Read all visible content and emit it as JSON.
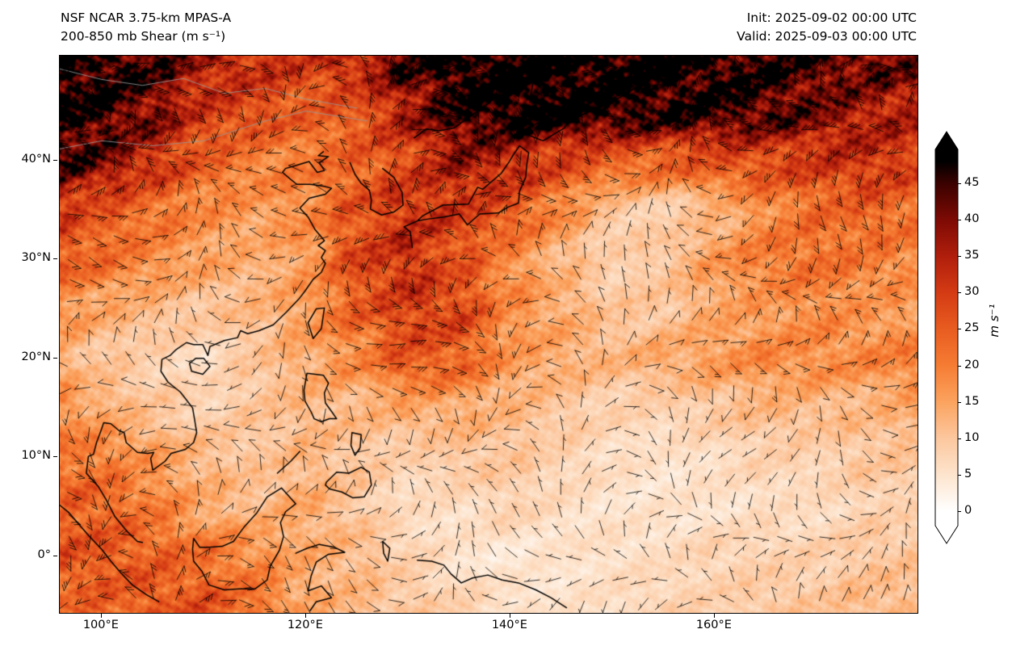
{
  "header": {
    "title_line1": "NSF NCAR 3.75-km MPAS-A",
    "title_line2": "200-850 mb Shear (m s⁻¹)",
    "init_label": "Init: 2025-09-02 00:00 UTC",
    "valid_label": "Valid: 2025-09-03 00:00 UTC"
  },
  "axes": {
    "x_ticks": [
      {
        "label": "100°E",
        "lon": 100
      },
      {
        "label": "120°E",
        "lon": 120
      },
      {
        "label": "140°E",
        "lon": 140
      },
      {
        "label": "160°E",
        "lon": 160
      }
    ],
    "y_ticks": [
      {
        "label": "40°N",
        "lat": 40
      },
      {
        "label": "30°N",
        "lat": 30
      },
      {
        "label": "20°N",
        "lat": 20
      },
      {
        "label": "10°N",
        "lat": 10
      },
      {
        "label": "0°",
        "lat": 0
      }
    ]
  },
  "colorbar": {
    "label": "m s⁻¹",
    "ticks": [
      0,
      5,
      10,
      15,
      20,
      25,
      30,
      35,
      40,
      45
    ],
    "stops": [
      {
        "v": 0,
        "c": "#ffffff"
      },
      {
        "v": 5,
        "c": "#fde4cd"
      },
      {
        "v": 10,
        "c": "#fcc79e"
      },
      {
        "v": 15,
        "c": "#fba35f"
      },
      {
        "v": 20,
        "c": "#f67c33"
      },
      {
        "v": 25,
        "c": "#e85c20"
      },
      {
        "v": 30,
        "c": "#d43b14"
      },
      {
        "v": 35,
        "c": "#b01e0c"
      },
      {
        "v": 40,
        "c": "#7d0a04"
      },
      {
        "v": 45,
        "c": "#3a0200"
      },
      {
        "v": 48,
        "c": "#000000"
      }
    ]
  },
  "chart_data": {
    "type": "heatmap",
    "title": "NSF NCAR 3.75-km MPAS-A 200-850 mb Shear",
    "units": "m s⁻¹",
    "overlay": "wind shear barbs with calm circles",
    "extent": {
      "lon_min": 95.9,
      "lon_max": 179.8,
      "lat_min": -5.7,
      "lat_max": 50.6
    },
    "colorbar_range": [
      0,
      45
    ],
    "lons": [
      95,
      100,
      105,
      110,
      115,
      120,
      125,
      130,
      135,
      140,
      145,
      150,
      155,
      160,
      165,
      170,
      175,
      180
    ],
    "lats": [
      50,
      45,
      40,
      35,
      30,
      25,
      20,
      15,
      10,
      5,
      0,
      -5
    ],
    "values": [
      [
        48,
        48,
        44,
        36,
        32,
        30,
        34,
        44,
        50,
        50,
        50,
        50,
        50,
        48,
        46,
        44,
        42,
        40
      ],
      [
        48,
        46,
        40,
        30,
        28,
        24,
        26,
        36,
        46,
        50,
        50,
        48,
        46,
        46,
        44,
        40,
        36,
        34
      ],
      [
        46,
        40,
        32,
        24,
        20,
        20,
        24,
        28,
        36,
        34,
        28,
        24,
        24,
        26,
        28,
        30,
        32,
        30
      ],
      [
        30,
        26,
        22,
        18,
        16,
        18,
        26,
        32,
        30,
        26,
        18,
        10,
        8,
        12,
        18,
        22,
        24,
        22
      ],
      [
        26,
        22,
        18,
        15,
        13,
        16,
        28,
        32,
        26,
        18,
        12,
        8,
        10,
        16,
        20,
        22,
        20,
        18
      ],
      [
        18,
        14,
        12,
        10,
        12,
        16,
        24,
        30,
        28,
        18,
        14,
        10,
        10,
        14,
        16,
        18,
        16,
        16
      ],
      [
        14,
        10,
        8,
        6,
        10,
        14,
        18,
        26,
        24,
        16,
        14,
        12,
        14,
        16,
        18,
        18,
        18,
        20
      ],
      [
        18,
        14,
        10,
        8,
        10,
        12,
        12,
        14,
        14,
        12,
        10,
        8,
        8,
        10,
        12,
        12,
        12,
        14
      ],
      [
        22,
        20,
        16,
        12,
        10,
        12,
        10,
        8,
        10,
        10,
        8,
        6,
        5,
        6,
        8,
        8,
        10,
        10
      ],
      [
        24,
        24,
        20,
        14,
        12,
        14,
        10,
        6,
        6,
        8,
        6,
        5,
        5,
        5,
        6,
        6,
        8,
        8
      ],
      [
        26,
        26,
        24,
        22,
        18,
        14,
        12,
        8,
        5,
        4,
        5,
        6,
        6,
        8,
        8,
        8,
        10,
        10
      ],
      [
        22,
        24,
        26,
        26,
        22,
        14,
        12,
        10,
        8,
        6,
        5,
        6,
        8,
        8,
        10,
        10,
        12,
        12
      ]
    ]
  }
}
